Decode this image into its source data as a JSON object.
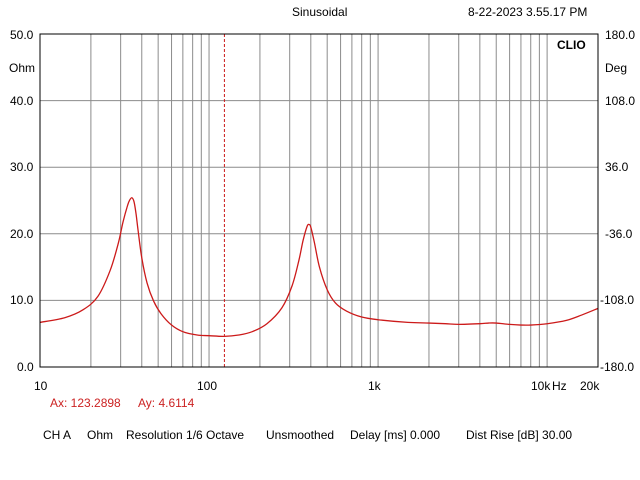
{
  "header": {
    "mode": "Sinusoidal",
    "timestamp": "8-22-2023 3.55.17 PM",
    "brand": "CLIO"
  },
  "axes": {
    "left_unit": "Ohm",
    "right_unit": "Deg",
    "freq_unit": "Hz"
  },
  "cursor": {
    "ax_label": "Ax: 123.2898",
    "ay_label": "Ay: 4.6114",
    "x": 123.2898
  },
  "footer": {
    "channel": "CH A",
    "unit": "Ohm",
    "resolution": "Resolution 1/6 Octave",
    "smoothing": "Unsmoothed",
    "delay": "Delay [ms] 0.000",
    "dist_rise": "Dist Rise [dB] 30.00"
  },
  "colors": {
    "trace": "#cc1a1a",
    "grid": "#8c8c8c",
    "cursor": "#cc1a1a"
  },
  "chart_data": {
    "type": "line",
    "title": "Sinusoidal",
    "xlabel": "Hz",
    "ylabel": "Ohm",
    "y2label": "Deg",
    "xscale": "log",
    "xlim": [
      10,
      20000
    ],
    "ylim": [
      0,
      50
    ],
    "y2lim": [
      -180,
      180
    ],
    "grid": true,
    "x_ticks": [
      {
        "value": 10,
        "label": "10"
      },
      {
        "value": 100,
        "label": "100"
      },
      {
        "value": 1000,
        "label": "1k"
      },
      {
        "value": 10000,
        "label": "10k"
      },
      {
        "value": 20000,
        "label": "20k"
      }
    ],
    "y_ticks": [
      "0.0",
      "10.0",
      "20.0",
      "30.0",
      "40.0",
      "50.0"
    ],
    "y2_ticks": [
      "-180.0",
      "-108.0",
      "-36.0",
      "36.0",
      "108.0",
      "180.0"
    ],
    "series": [
      {
        "x": [
          10,
          14,
          18,
          22,
          26,
          29,
          31,
          33,
          34,
          35,
          36,
          37,
          38,
          40,
          43,
          47,
          52,
          60,
          70,
          85,
          100,
          123,
          150,
          180,
          220,
          270,
          310,
          340,
          360,
          380,
          390,
          400,
          420,
          450,
          500,
          560,
          650,
          800,
          1000,
          1500,
          2000,
          2500,
          3000,
          4000,
          4500,
          5000,
          6000,
          7000,
          8000,
          10000,
          13000,
          16000,
          20000
        ],
        "y": [
          6.7,
          7.4,
          8.6,
          10.6,
          14.5,
          18.5,
          21.8,
          24.3,
          25.1,
          25.4,
          24.8,
          23.0,
          20.6,
          16.4,
          12.6,
          9.9,
          8.0,
          6.3,
          5.3,
          4.8,
          4.7,
          4.6,
          4.8,
          5.3,
          6.5,
          8.9,
          12.2,
          16.0,
          19.0,
          21.1,
          21.4,
          21.0,
          18.7,
          15.0,
          11.6,
          9.6,
          8.4,
          7.5,
          7.1,
          6.7,
          6.6,
          6.5,
          6.4,
          6.5,
          6.6,
          6.6,
          6.4,
          6.3,
          6.3,
          6.5,
          7.0,
          7.8,
          8.8
        ]
      }
    ]
  }
}
